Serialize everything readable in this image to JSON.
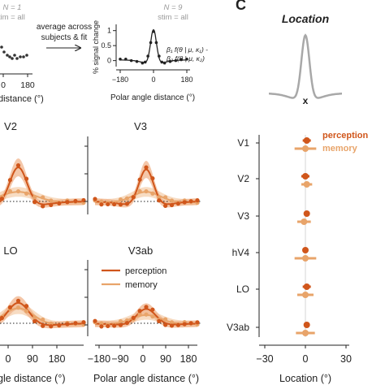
{
  "colors": {
    "perception": "#d0561b",
    "memory": "#e8a46a",
    "perception_band": "#f0b48c",
    "memory_band": "#f6d6b8",
    "axis": "#222222",
    "grey_curve": "#a8a8a8",
    "note": "#9a9a9a"
  },
  "top": {
    "left_note": [
      "N = 1",
      "stim = all"
    ],
    "left_tick": "180",
    "left_xlabel": "distance (°)",
    "arrow_text": [
      "average across",
      "subjects & fit"
    ],
    "inset_note": [
      "N = 9",
      "stim = all"
    ],
    "inset_ylabel": "% signal change",
    "inset_yticks": [
      "1",
      "0.5",
      "0"
    ],
    "inset_xticks": [
      "−180",
      "0",
      "180"
    ],
    "inset_xlabel": "Polar angle distance (°)",
    "formula": [
      "β₁ f(θ | μ, κ₁) -",
      "β₂ f(θ | μ, κ₂)"
    ]
  },
  "panel_letter": "C",
  "location_title": "Location",
  "location_marker": "x",
  "panels": [
    {
      "title": "V2"
    },
    {
      "title": "V3"
    },
    {
      "title": "LO"
    },
    {
      "title": "V3ab"
    }
  ],
  "bottom_xticks_left": [
    "0",
    "90",
    "180"
  ],
  "bottom_xticks_right": [
    "−180",
    "−90",
    "0",
    "90",
    "180"
  ],
  "bottom_xlabel_left": "gle distance (°)",
  "bottom_xlabel_right": "Polar angle distance (°)",
  "legend_main": [
    "perception",
    "memory"
  ],
  "legend_loc": [
    "perception",
    "memory"
  ],
  "chart_data": [
    {
      "type": "scatter",
      "title": "Location",
      "xlabel": "Location (°)",
      "xlim": [
        -30,
        30
      ],
      "xticks": [
        "−30",
        "0",
        "30"
      ],
      "categories": [
        "V1",
        "V2",
        "V3",
        "hV4",
        "LO",
        "V3ab"
      ],
      "series": [
        {
          "name": "perception",
          "values": [
            1,
            0,
            1,
            0,
            1,
            1
          ],
          "err": [
            3,
            3,
            1,
            2,
            3,
            2
          ]
        },
        {
          "name": "memory",
          "values": [
            0,
            1,
            -1,
            0,
            0,
            0
          ],
          "err": [
            8,
            4,
            5,
            8,
            6,
            7
          ]
        }
      ]
    },
    {
      "type": "line",
      "title": "N = 9",
      "xlabel": "Polar angle distance (°)",
      "ylabel": "% signal change",
      "xlim": [
        -180,
        180
      ],
      "ylim": [
        -0.2,
        1.1
      ],
      "x": [
        -180,
        -150,
        -120,
        -90,
        -60,
        -45,
        -30,
        -15,
        0,
        15,
        30,
        45,
        60,
        90,
        120,
        150,
        180
      ],
      "series": [
        {
          "values": [
            0.05,
            0.05,
            0.0,
            -0.03,
            -0.08,
            -0.05,
            0.15,
            0.6,
            0.97,
            0.6,
            0.15,
            -0.05,
            -0.08,
            -0.03,
            0.0,
            0.03,
            0.05
          ]
        }
      ]
    }
  ]
}
